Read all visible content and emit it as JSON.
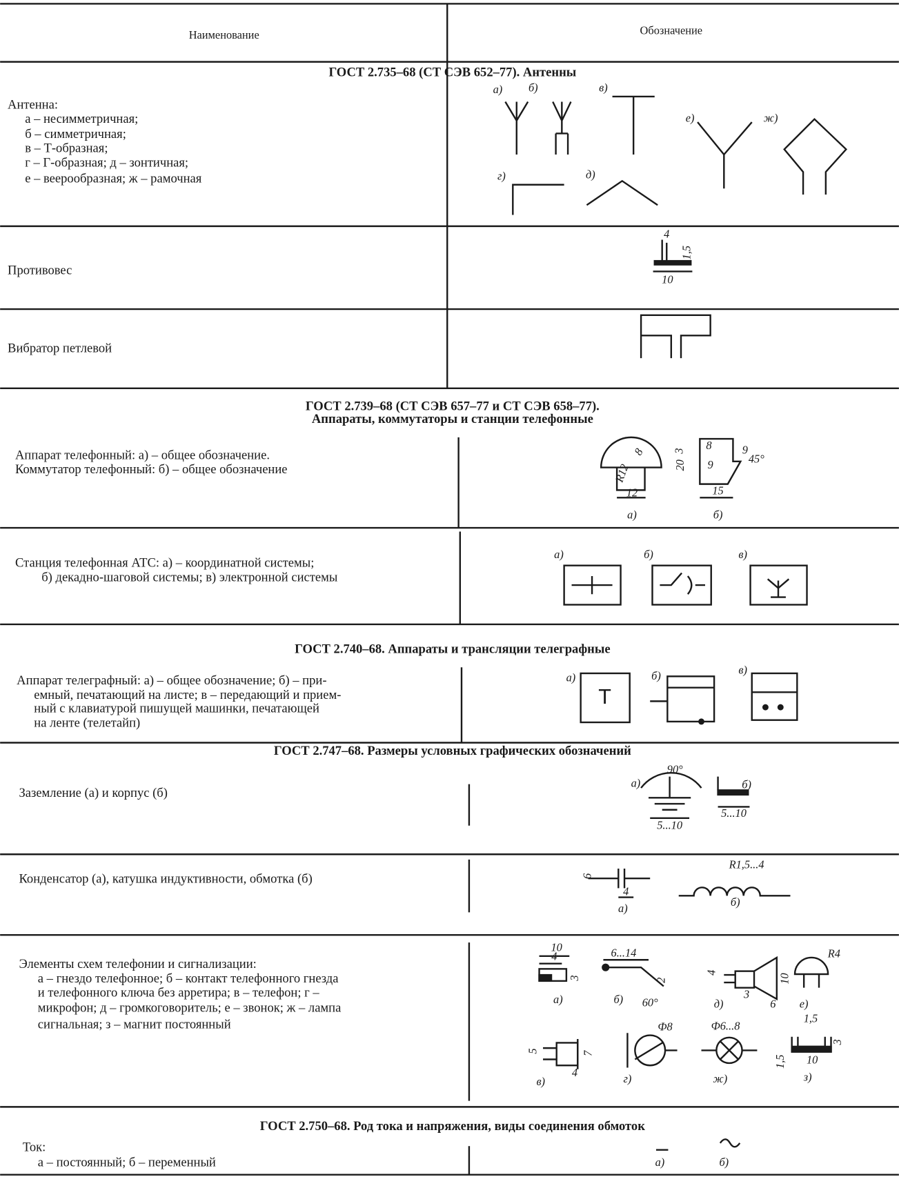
{
  "header": {
    "name": "Наименование",
    "designation": "Обозначение"
  },
  "sections": [
    {
      "title": [
        "ГОСТ 2.735–68 (СТ СЭВ 652–77). Антенны"
      ],
      "rows": [
        {
          "name": [
            "Антенна:",
            "а – несимметричная;",
            "б – симметричная;",
            "в – Т-образная;",
            "г – Г-образная; д – зонтичная;",
            "е – веерообразная; ж – рамочная"
          ],
          "labels": [
            "а)",
            "б)",
            "в)",
            "е)",
            "ж)",
            "г)",
            "д)"
          ]
        },
        {
          "name": [
            "Противовес"
          ],
          "labels": [
            "4",
            "1,5",
            "10"
          ]
        },
        {
          "name": [
            "Вибратор петлевой"
          ]
        }
      ]
    },
    {
      "title": [
        "ГОСТ 2.739–68 (СТ СЭВ 657–77 и СТ СЭВ 658–77).",
        "Аппараты, коммутаторы и станции телефонные"
      ],
      "rows": [
        {
          "name": [
            "Аппарат телефонный: а) – общее обозначение.",
            "Коммутатор телефонный: б) – общее обозначение"
          ],
          "labels": [
            "8",
            "R12",
            "3",
            "20",
            "12",
            "а)",
            "8",
            "9",
            "9",
            "45°",
            "15",
            "б)"
          ]
        },
        {
          "name": [
            "Станция телефонная АТС: а) – координатной системы;",
            "б) декадно-шаговой системы; в) электронной системы"
          ],
          "labels": [
            "а)",
            "б)",
            "в)"
          ]
        }
      ]
    },
    {
      "title": [
        "ГОСТ 2.740–68. Аппараты и трансляции телеграфные"
      ],
      "rows": [
        {
          "name": [
            "Аппарат телеграфный: а) – общее обозначение; б) – при-",
            "емный, печатающий на листе; в – передающий и прием-",
            "ный с клавиатурой пишущей машинки, печатающей",
            "на ленте (телетайп)"
          ],
          "labels": [
            "а)",
            "Т",
            "б)",
            "в)"
          ]
        }
      ]
    },
    {
      "title": [
        "ГОСТ 2.747–68. Размеры условных графических обозначений"
      ],
      "rows": [
        {
          "name": [
            "Заземление (а) и корпус (б)"
          ],
          "labels": [
            "а)",
            "90°",
            "5...10",
            "б)",
            "5...10"
          ]
        },
        {
          "name": [
            "Конденсатор (а), катушка индуктивности, обмотка (б)"
          ],
          "labels": [
            "6",
            "4",
            "а)",
            "R1,5...4",
            "б)"
          ]
        },
        {
          "name": [
            "Элементы схем телефонии и сигнализации:",
            "а – гнездо телефонное; б – контакт телефонного гнезда",
            "и телефонного ключа без арретира; в – телефон; г –",
            "микрофон; д – громкоговоритель; е – звонок; ж – лампа",
            "сигнальная; з – магнит постоянный"
          ],
          "labels": [
            "10",
            "4",
            "3",
            "а)",
            "6...14",
            "2",
            "б)",
            "60°",
            "4",
            "3",
            "10",
            "6",
            "д)",
            "R4",
            "е)",
            "5",
            "7",
            "4",
            "в)",
            "Ф8",
            "г)",
            "Ф6...8",
            "ж)",
            "1,5",
            "1,5",
            "3",
            "10",
            "з)"
          ]
        }
      ]
    },
    {
      "title": [
        "ГОСТ 2.750–68. Род тока и напряжения, виды соединения обмоток"
      ],
      "rows": [
        {
          "name": [
            "Ток:",
            "а – постоянный; б – переменный"
          ],
          "labels": [
            "а)",
            "б)"
          ]
        }
      ]
    }
  ]
}
